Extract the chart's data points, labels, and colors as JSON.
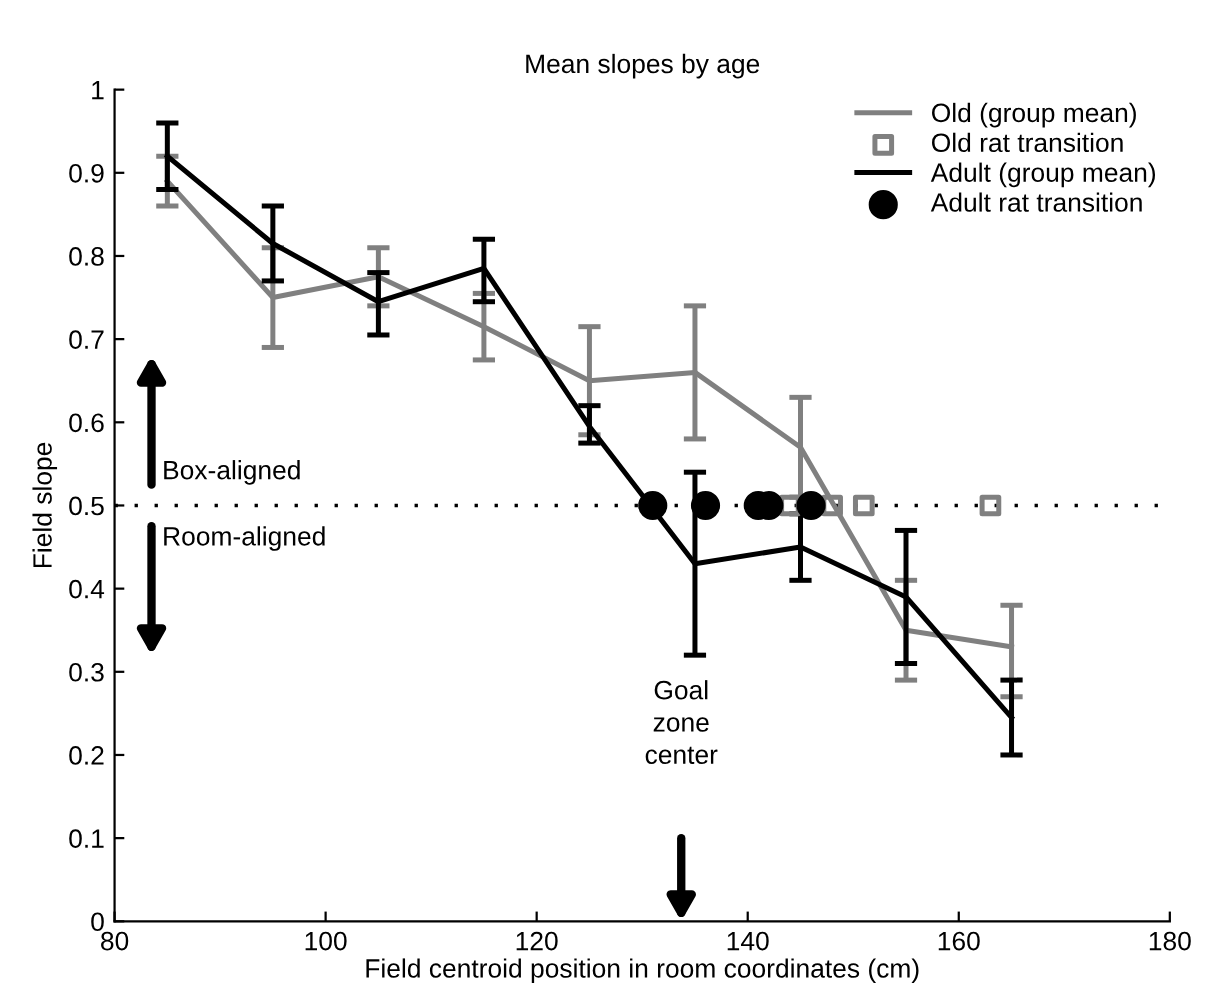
{
  "chart_data": {
    "type": "line",
    "title": "Mean slopes by age",
    "xlabel": "Field centroid position in room coordinates (cm)",
    "ylabel": "Field slope",
    "xlim": [
      80,
      180
    ],
    "xticks": [
      80,
      100,
      120,
      140,
      160,
      180
    ],
    "ylim": [
      0,
      1
    ],
    "yticks": [
      0,
      0.1,
      0.2,
      0.3,
      0.4,
      0.5,
      0.6,
      0.7,
      0.8,
      0.9,
      1
    ],
    "legend": "top right",
    "grid": false,
    "series": [
      {
        "name": "Old (group mean)",
        "color": "#808080",
        "x": [
          85,
          95,
          105,
          115,
          125,
          135,
          145,
          155,
          165
        ],
        "values": [
          0.89,
          0.75,
          0.775,
          0.715,
          0.65,
          0.66,
          0.57,
          0.35,
          0.33
        ],
        "errors": [
          [
            0.86,
            0.92
          ],
          [
            0.69,
            0.81
          ],
          [
            0.74,
            0.81
          ],
          [
            0.675,
            0.755
          ],
          [
            0.585,
            0.715
          ],
          [
            0.58,
            0.74
          ],
          [
            0.51,
            0.63
          ],
          [
            0.29,
            0.41
          ],
          [
            0.27,
            0.38
          ]
        ]
      },
      {
        "name": "Old rat transition",
        "type": "scatter",
        "marker": "square",
        "color": "#808080",
        "x": [
          144,
          148,
          151,
          163
        ],
        "values": [
          0.5,
          0.5,
          0.5,
          0.5
        ]
      },
      {
        "name": "Adult (group mean)",
        "color": "#000000",
        "x": [
          85,
          95,
          105,
          115,
          125,
          135,
          145,
          155,
          165
        ],
        "values": [
          0.92,
          0.815,
          0.745,
          0.785,
          0.595,
          0.43,
          0.45,
          0.39,
          0.245
        ],
        "errors": [
          [
            0.88,
            0.96
          ],
          [
            0.77,
            0.86
          ],
          [
            0.705,
            0.78
          ],
          [
            0.745,
            0.82
          ],
          [
            0.575,
            0.62
          ],
          [
            0.32,
            0.54
          ],
          [
            0.41,
            0.49
          ],
          [
            0.31,
            0.47
          ],
          [
            0.2,
            0.29
          ]
        ]
      },
      {
        "name": "Adult rat transition",
        "type": "scatter",
        "marker": "circle",
        "color": "#000000",
        "x": [
          131,
          136,
          141,
          142,
          146
        ],
        "values": [
          0.5,
          0.5,
          0.5,
          0.5,
          0.5
        ]
      }
    ],
    "ref_lines": [
      {
        "axis": "y",
        "value": 0.5,
        "color": "#000000",
        "line_style": "dotted"
      }
    ],
    "annotations": [
      "Goal\nzone\ncenter",
      "Box-aligned",
      "Room-aligned"
    ]
  }
}
